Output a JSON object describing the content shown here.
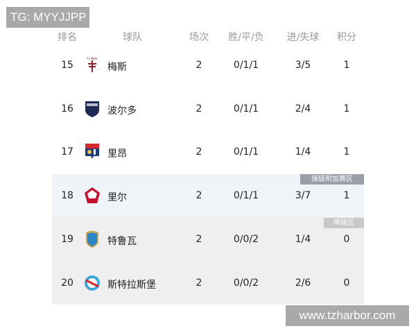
{
  "watermark_top": "TG: MYYJJPP",
  "watermark_bottom": "www.tzharbor.com",
  "header": {
    "rank": "排名",
    "team": "球队",
    "played": "场次",
    "wdl": "胜/平/负",
    "goals": "进/失球",
    "points": "积分"
  },
  "zones": {
    "playoff": "保级附加赛区",
    "relegation": "降级区",
    "playoff_color": "#eef4f8",
    "relegation_color": "#efefef"
  },
  "rows": [
    {
      "rank": "15",
      "team": "梅斯",
      "played": "2",
      "wdl": "0/1/1",
      "goals": "3/5",
      "points": "1",
      "logo": "metz-logo"
    },
    {
      "rank": "16",
      "team": "波尔多",
      "played": "2",
      "wdl": "0/1/1",
      "goals": "2/4",
      "points": "1",
      "logo": "bordeaux-logo"
    },
    {
      "rank": "17",
      "team": "里昂",
      "played": "2",
      "wdl": "0/1/1",
      "goals": "1/4",
      "points": "1",
      "logo": "lyon-logo"
    },
    {
      "rank": "18",
      "team": "里尔",
      "played": "2",
      "wdl": "0/1/1",
      "goals": "3/7",
      "points": "1",
      "logo": "lille-logo"
    },
    {
      "rank": "19",
      "team": "特鲁瓦",
      "played": "2",
      "wdl": "0/0/2",
      "goals": "1/4",
      "points": "0",
      "logo": "troyes-logo"
    },
    {
      "rank": "20",
      "team": "斯特拉斯堡",
      "played": "2",
      "wdl": "0/0/2",
      "goals": "2/6",
      "points": "0",
      "logo": "strasbourg-logo"
    }
  ]
}
